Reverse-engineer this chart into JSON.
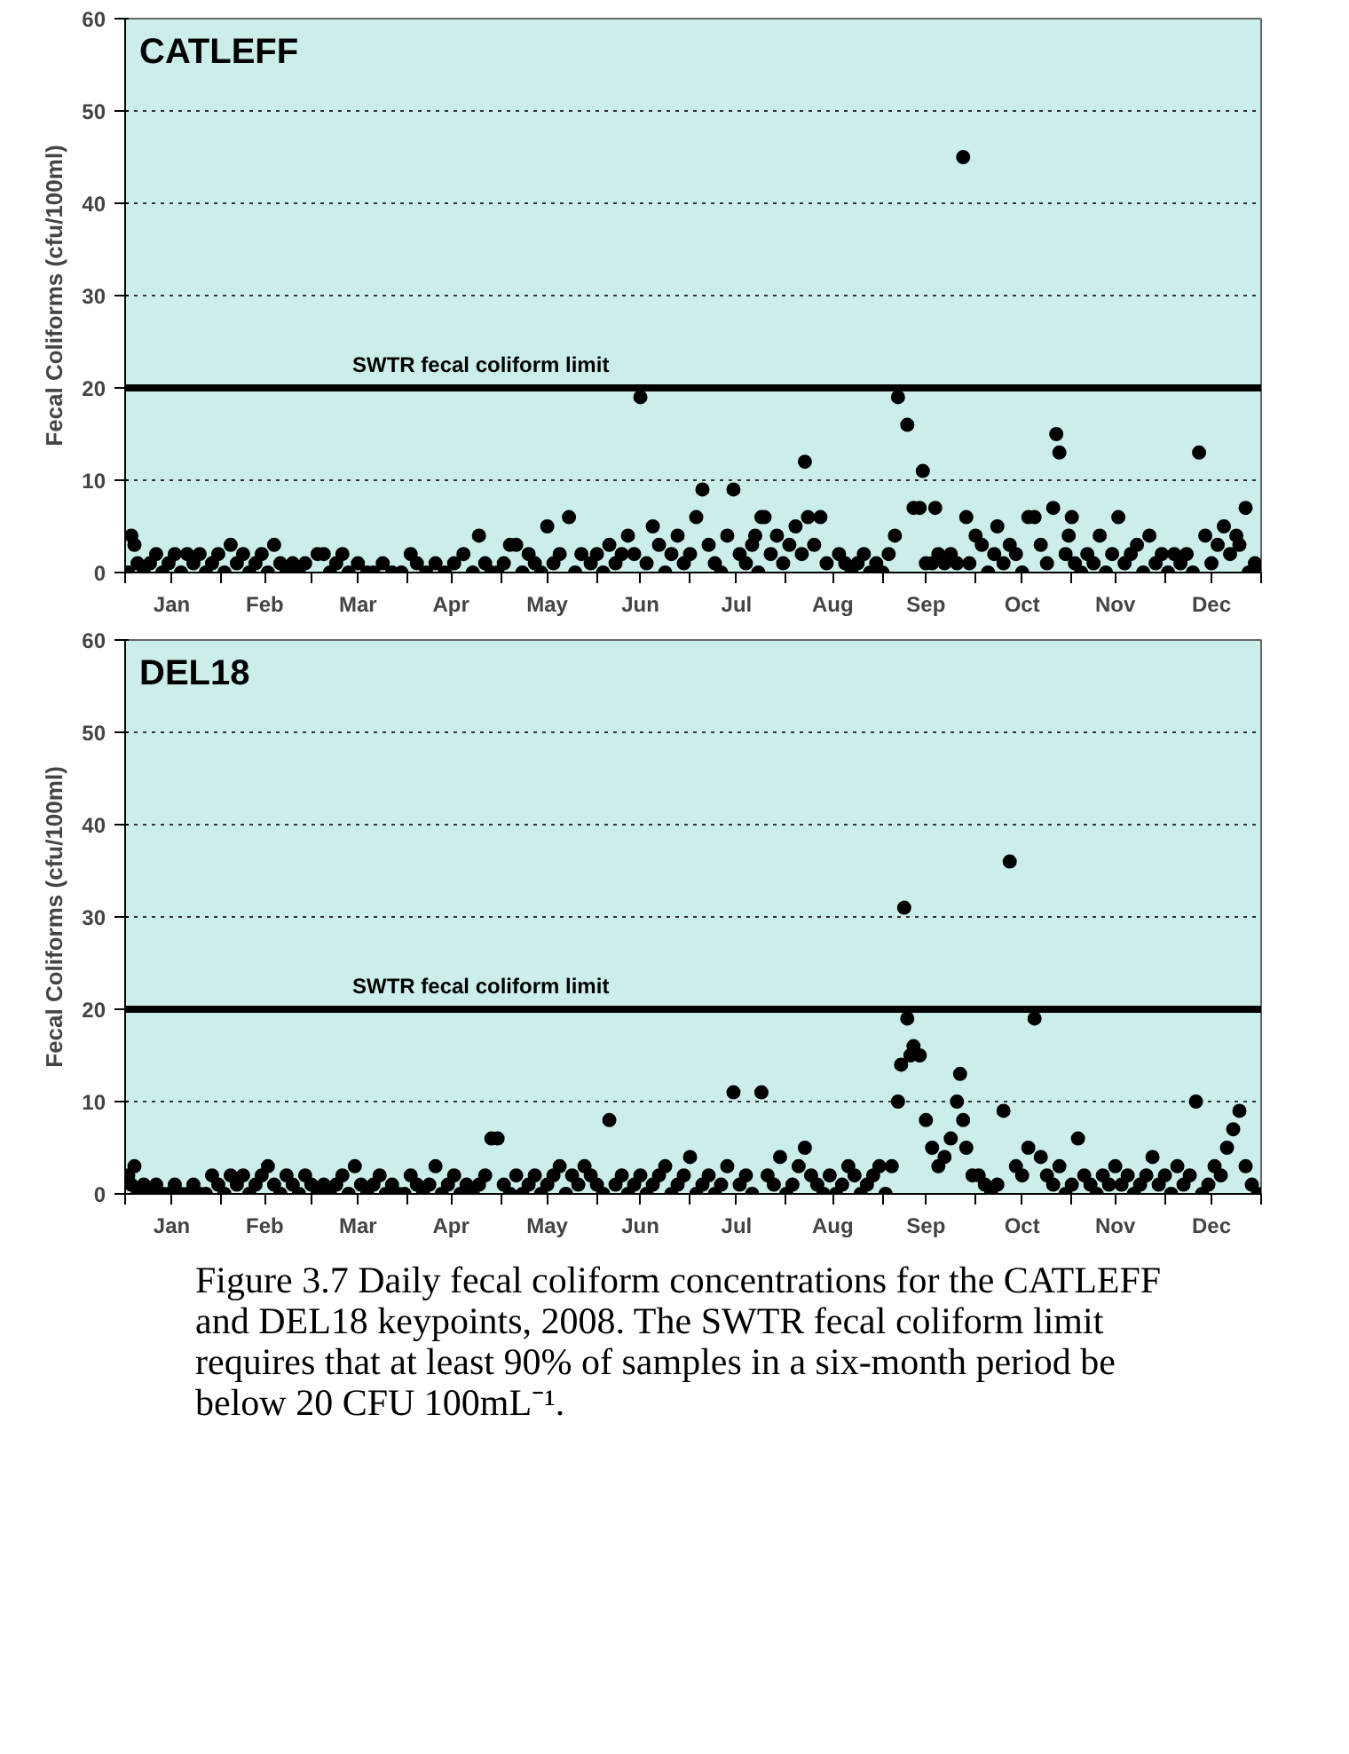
{
  "chart_data": [
    {
      "type": "scatter",
      "title": "CATLEFF",
      "ylabel": "Fecal Coliforms (cfu/100ml)",
      "marker": "circle",
      "grid": "y",
      "xlim": [
        "2008-01-01",
        "2009-01-01"
      ],
      "ylim": [
        0,
        60
      ],
      "yticks": [
        0,
        10,
        20,
        30,
        40,
        50,
        60
      ],
      "xticks": [
        {
          "value": "2008-01-01",
          "label": null
        },
        {
          "value": "2008-01-16",
          "label": "Jan"
        },
        {
          "value": "2008-02-01",
          "label": null
        },
        {
          "value": "2008-02-15",
          "label": "Feb"
        },
        {
          "value": "2008-03-01",
          "label": null
        },
        {
          "value": "2008-03-16",
          "label": "Mar"
        },
        {
          "value": "2008-04-01",
          "label": null
        },
        {
          "value": "2008-04-15",
          "label": "Apr"
        },
        {
          "value": "2008-05-01",
          "label": null
        },
        {
          "value": "2008-05-16",
          "label": "May"
        },
        {
          "value": "2008-06-01",
          "label": null
        },
        {
          "value": "2008-06-15",
          "label": "Jun"
        },
        {
          "value": "2008-07-01",
          "label": null
        },
        {
          "value": "2008-07-16",
          "label": "Jul"
        },
        {
          "value": "2008-08-01",
          "label": null
        },
        {
          "value": "2008-08-16",
          "label": "Aug"
        },
        {
          "value": "2008-09-01",
          "label": null
        },
        {
          "value": "2008-09-15",
          "label": "Sep"
        },
        {
          "value": "2008-10-01",
          "label": null
        },
        {
          "value": "2008-10-16",
          "label": "Oct"
        },
        {
          "value": "2008-11-01",
          "label": null
        },
        {
          "value": "2008-11-15",
          "label": "Nov"
        },
        {
          "value": "2008-12-01",
          "label": null
        },
        {
          "value": "2008-12-16",
          "label": "Dec"
        },
        {
          "value": "2009-01-01",
          "label": null
        }
      ],
      "ref_lines": [
        {
          "axis": "y",
          "value": 20,
          "label": "SWTR fecal coliform limit",
          "color": "#000000"
        }
      ],
      "series": [
        {
          "color": "#000000",
          "x": [
            "2008-01-02",
            "2008-01-03",
            "2008-01-04",
            "2008-01-05",
            "2008-01-07",
            "2008-01-09",
            "2008-01-11",
            "2008-01-13",
            "2008-01-15",
            "2008-01-17",
            "2008-01-19",
            "2008-01-21",
            "2008-01-23",
            "2008-01-25",
            "2008-01-27",
            "2008-01-29",
            "2008-01-31",
            "2008-02-02",
            "2008-02-04",
            "2008-02-06",
            "2008-02-08",
            "2008-02-10",
            "2008-02-12",
            "2008-02-14",
            "2008-02-16",
            "2008-02-18",
            "2008-02-20",
            "2008-02-22",
            "2008-02-24",
            "2008-02-26",
            "2008-02-28",
            "2008-03-03",
            "2008-03-05",
            "2008-03-07",
            "2008-03-09",
            "2008-03-11",
            "2008-03-13",
            "2008-03-16",
            "2008-03-19",
            "2008-03-21",
            "2008-03-24",
            "2008-03-27",
            "2008-03-30",
            "2008-04-02",
            "2008-04-04",
            "2008-04-07",
            "2008-04-10",
            "2008-04-13",
            "2008-04-16",
            "2008-04-19",
            "2008-04-22",
            "2008-04-24",
            "2008-04-26",
            "2008-04-28",
            "2008-04-30",
            "2008-05-02",
            "2008-05-04",
            "2008-05-06",
            "2008-05-08",
            "2008-05-10",
            "2008-05-12",
            "2008-05-14",
            "2008-05-16",
            "2008-05-18",
            "2008-05-20",
            "2008-05-23",
            "2008-05-25",
            "2008-05-27",
            "2008-05-30",
            "2008-06-01",
            "2008-06-03",
            "2008-06-05",
            "2008-06-07",
            "2008-06-09",
            "2008-06-11",
            "2008-06-13",
            "2008-06-15",
            "2008-06-17",
            "2008-06-19",
            "2008-06-21",
            "2008-06-23",
            "2008-06-25",
            "2008-06-27",
            "2008-06-29",
            "2008-07-01",
            "2008-07-03",
            "2008-07-05",
            "2008-07-07",
            "2008-07-09",
            "2008-07-11",
            "2008-07-13",
            "2008-07-15",
            "2008-07-17",
            "2008-07-19",
            "2008-07-21",
            "2008-07-22",
            "2008-07-23",
            "2008-07-24",
            "2008-07-25",
            "2008-07-27",
            "2008-07-29",
            "2008-07-31",
            "2008-08-02",
            "2008-08-04",
            "2008-08-06",
            "2008-08-07",
            "2008-08-08",
            "2008-08-10",
            "2008-08-12",
            "2008-08-14",
            "2008-08-18",
            "2008-08-20",
            "2008-08-22",
            "2008-08-24",
            "2008-08-26",
            "2008-08-28",
            "2008-08-30",
            "2008-09-01",
            "2008-09-03",
            "2008-09-05",
            "2008-09-06",
            "2008-09-09",
            "2008-09-11",
            "2008-09-13",
            "2008-09-14",
            "2008-09-15",
            "2008-09-17",
            "2008-09-18",
            "2008-09-19",
            "2008-09-21",
            "2008-09-23",
            "2008-09-25",
            "2008-09-27",
            "2008-09-28",
            "2008-09-29",
            "2008-10-01",
            "2008-10-03",
            "2008-10-05",
            "2008-10-07",
            "2008-10-08",
            "2008-10-10",
            "2008-10-12",
            "2008-10-14",
            "2008-10-16",
            "2008-10-18",
            "2008-10-20",
            "2008-10-22",
            "2008-10-24",
            "2008-10-26",
            "2008-10-27",
            "2008-10-28",
            "2008-10-30",
            "2008-10-31",
            "2008-11-01",
            "2008-11-02",
            "2008-11-04",
            "2008-11-06",
            "2008-11-08",
            "2008-11-10",
            "2008-11-12",
            "2008-11-14",
            "2008-11-16",
            "2008-11-18",
            "2008-11-20",
            "2008-11-22",
            "2008-11-24",
            "2008-11-26",
            "2008-11-28",
            "2008-11-30",
            "2008-12-02",
            "2008-12-04",
            "2008-12-06",
            "2008-12-08",
            "2008-12-10",
            "2008-12-12",
            "2008-12-14",
            "2008-12-16",
            "2008-12-18",
            "2008-12-20",
            "2008-12-22",
            "2008-12-24",
            "2008-12-25",
            "2008-12-27",
            "2008-12-28",
            "2008-12-30",
            "2008-12-31"
          ],
          "values": [
            0,
            4,
            3,
            1,
            0,
            1,
            2,
            0,
            1,
            2,
            0,
            2,
            1,
            2,
            0,
            1,
            2,
            0,
            3,
            1,
            2,
            0,
            1,
            2,
            0,
            3,
            1,
            0,
            1,
            0,
            1,
            2,
            2,
            0,
            1,
            2,
            0,
            1,
            0,
            0,
            1,
            0,
            0,
            2,
            1,
            0,
            1,
            0,
            1,
            2,
            0,
            4,
            1,
            0,
            0,
            1,
            3,
            3,
            0,
            2,
            1,
            0,
            5,
            1,
            2,
            6,
            0,
            2,
            1,
            2,
            0,
            3,
            1,
            2,
            4,
            2,
            19,
            1,
            5,
            3,
            0,
            2,
            4,
            1,
            2,
            6,
            9,
            3,
            1,
            0,
            4,
            9,
            2,
            1,
            3,
            4,
            0,
            6,
            6,
            2,
            4,
            1,
            3,
            5,
            2,
            12,
            6,
            3,
            6,
            1,
            2,
            1,
            0,
            1,
            2,
            0,
            1,
            0,
            2,
            4,
            19,
            16,
            7,
            7,
            11,
            1,
            1,
            7,
            2,
            1,
            2,
            1,
            45,
            6,
            1,
            4,
            3,
            0,
            2,
            5,
            1,
            3,
            2,
            0,
            6,
            6,
            3,
            1,
            7,
            15,
            13,
            2,
            4,
            6,
            1,
            0,
            2,
            1,
            4,
            0,
            2,
            6,
            1,
            2,
            3,
            0,
            4,
            1,
            2,
            0,
            2,
            1,
            2,
            0,
            13,
            4,
            1,
            3,
            5,
            2,
            4,
            3,
            7,
            0,
            1,
            0
          ]
        }
      ]
    },
    {
      "type": "scatter",
      "title": "DEL18",
      "ylabel": "Fecal Coliforms (cfu/100ml)",
      "marker": "circle",
      "grid": "y",
      "xlim": [
        "2008-01-01",
        "2009-01-01"
      ],
      "ylim": [
        0,
        60
      ],
      "yticks": [
        0,
        10,
        20,
        30,
        40,
        50,
        60
      ],
      "xticks": [
        {
          "value": "2008-01-01",
          "label": null
        },
        {
          "value": "2008-01-16",
          "label": "Jan"
        },
        {
          "value": "2008-02-01",
          "label": null
        },
        {
          "value": "2008-02-15",
          "label": "Feb"
        },
        {
          "value": "2008-03-01",
          "label": null
        },
        {
          "value": "2008-03-16",
          "label": "Mar"
        },
        {
          "value": "2008-04-01",
          "label": null
        },
        {
          "value": "2008-04-15",
          "label": "Apr"
        },
        {
          "value": "2008-05-01",
          "label": null
        },
        {
          "value": "2008-05-16",
          "label": "May"
        },
        {
          "value": "2008-06-01",
          "label": null
        },
        {
          "value": "2008-06-15",
          "label": "Jun"
        },
        {
          "value": "2008-07-01",
          "label": null
        },
        {
          "value": "2008-07-16",
          "label": "Jul"
        },
        {
          "value": "2008-08-01",
          "label": null
        },
        {
          "value": "2008-08-16",
          "label": "Aug"
        },
        {
          "value": "2008-09-01",
          "label": null
        },
        {
          "value": "2008-09-15",
          "label": "Sep"
        },
        {
          "value": "2008-10-01",
          "label": null
        },
        {
          "value": "2008-10-16",
          "label": "Oct"
        },
        {
          "value": "2008-11-01",
          "label": null
        },
        {
          "value": "2008-11-15",
          "label": "Nov"
        },
        {
          "value": "2008-12-01",
          "label": null
        },
        {
          "value": "2008-12-16",
          "label": "Dec"
        },
        {
          "value": "2009-01-01",
          "label": null
        }
      ],
      "ref_lines": [
        {
          "axis": "y",
          "value": 20,
          "label": "SWTR fecal coliform limit",
          "color": "#000000"
        }
      ],
      "annotations": [
        "Figure 3.7  Daily fecal coliform concentrations for the CATLEFF and DEL18 keypoints, 2008. The SWTR fecal coliform limit requires that at least 90% of samples in a six-month period be below 20 CFU 100mL⁻¹."
      ],
      "series": [
        {
          "color": "#000000",
          "x": [
            "2008-01-02",
            "2008-01-03",
            "2008-01-04",
            "2008-01-05",
            "2008-01-07",
            "2008-01-09",
            "2008-01-11",
            "2008-01-13",
            "2008-01-15",
            "2008-01-17",
            "2008-01-19",
            "2008-01-21",
            "2008-01-23",
            "2008-01-25",
            "2008-01-27",
            "2008-01-29",
            "2008-01-31",
            "2008-02-02",
            "2008-02-04",
            "2008-02-06",
            "2008-02-08",
            "2008-02-10",
            "2008-02-12",
            "2008-02-14",
            "2008-02-16",
            "2008-02-18",
            "2008-02-20",
            "2008-02-22",
            "2008-02-24",
            "2008-02-26",
            "2008-02-28",
            "2008-03-01",
            "2008-03-03",
            "2008-03-05",
            "2008-03-07",
            "2008-03-09",
            "2008-03-11",
            "2008-03-13",
            "2008-03-15",
            "2008-03-17",
            "2008-03-19",
            "2008-03-21",
            "2008-03-23",
            "2008-03-25",
            "2008-03-27",
            "2008-03-29",
            "2008-03-31",
            "2008-04-02",
            "2008-04-04",
            "2008-04-06",
            "2008-04-08",
            "2008-04-10",
            "2008-04-12",
            "2008-04-14",
            "2008-04-16",
            "2008-04-18",
            "2008-04-20",
            "2008-04-22",
            "2008-04-24",
            "2008-04-26",
            "2008-04-28",
            "2008-04-30",
            "2008-05-02",
            "2008-05-04",
            "2008-05-06",
            "2008-05-08",
            "2008-05-10",
            "2008-05-12",
            "2008-05-14",
            "2008-05-16",
            "2008-05-18",
            "2008-05-20",
            "2008-05-22",
            "2008-05-24",
            "2008-05-26",
            "2008-05-28",
            "2008-05-30",
            "2008-06-01",
            "2008-06-03",
            "2008-06-05",
            "2008-06-07",
            "2008-06-09",
            "2008-06-11",
            "2008-06-13",
            "2008-06-15",
            "2008-06-17",
            "2008-06-19",
            "2008-06-21",
            "2008-06-23",
            "2008-06-25",
            "2008-06-27",
            "2008-06-29",
            "2008-07-01",
            "2008-07-03",
            "2008-07-05",
            "2008-07-07",
            "2008-07-09",
            "2008-07-11",
            "2008-07-13",
            "2008-07-15",
            "2008-07-17",
            "2008-07-19",
            "2008-07-21",
            "2008-07-24",
            "2008-07-26",
            "2008-07-28",
            "2008-07-30",
            "2008-08-01",
            "2008-08-03",
            "2008-08-05",
            "2008-08-07",
            "2008-08-09",
            "2008-08-11",
            "2008-08-13",
            "2008-08-15",
            "2008-08-17",
            "2008-08-19",
            "2008-08-21",
            "2008-08-23",
            "2008-08-25",
            "2008-08-27",
            "2008-08-29",
            "2008-08-31",
            "2008-09-02",
            "2008-09-04",
            "2008-09-06",
            "2008-09-07",
            "2008-09-08",
            "2008-09-09",
            "2008-09-10",
            "2008-09-11",
            "2008-09-13",
            "2008-09-15",
            "2008-09-17",
            "2008-09-19",
            "2008-09-21",
            "2008-09-23",
            "2008-09-25",
            "2008-09-26",
            "2008-09-27",
            "2008-09-28",
            "2008-09-30",
            "2008-10-02",
            "2008-10-04",
            "2008-10-06",
            "2008-10-08",
            "2008-10-10",
            "2008-10-12",
            "2008-10-14",
            "2008-10-16",
            "2008-10-18",
            "2008-10-20",
            "2008-10-22",
            "2008-10-24",
            "2008-10-26",
            "2008-10-28",
            "2008-10-30",
            "2008-11-01",
            "2008-11-03",
            "2008-11-05",
            "2008-11-07",
            "2008-11-09",
            "2008-11-11",
            "2008-11-13",
            "2008-11-15",
            "2008-11-17",
            "2008-11-19",
            "2008-11-21",
            "2008-11-23",
            "2008-11-25",
            "2008-11-27",
            "2008-11-29",
            "2008-12-01",
            "2008-12-03",
            "2008-12-05",
            "2008-12-07",
            "2008-12-09",
            "2008-12-11",
            "2008-12-13",
            "2008-12-15",
            "2008-12-17",
            "2008-12-19",
            "2008-12-21",
            "2008-12-23",
            "2008-12-25",
            "2008-12-27",
            "2008-12-29",
            "2008-12-31"
          ],
          "values": [
            2,
            1,
            3,
            0,
            1,
            0,
            1,
            0,
            0,
            1,
            0,
            0,
            1,
            0,
            0,
            2,
            1,
            0,
            2,
            1,
            2,
            0,
            1,
            2,
            3,
            1,
            0,
            2,
            1,
            0,
            2,
            1,
            0,
            1,
            0,
            1,
            2,
            0,
            3,
            1,
            0,
            1,
            2,
            0,
            1,
            0,
            0,
            2,
            1,
            0,
            1,
            3,
            0,
            1,
            2,
            0,
            1,
            0,
            1,
            2,
            6,
            6,
            1,
            0,
            2,
            0,
            1,
            2,
            0,
            1,
            2,
            3,
            0,
            2,
            1,
            3,
            2,
            1,
            0,
            8,
            1,
            2,
            0,
            1,
            2,
            0,
            1,
            2,
            3,
            0,
            1,
            2,
            4,
            0,
            1,
            2,
            0,
            1,
            3,
            11,
            1,
            2,
            0,
            11,
            2,
            1,
            4,
            0,
            1,
            3,
            5,
            2,
            1,
            0,
            2,
            0,
            1,
            3,
            2,
            0,
            1,
            2,
            3,
            0,
            3,
            10,
            14,
            31,
            19,
            15,
            16,
            15,
            8,
            5,
            3,
            4,
            6,
            10,
            13,
            8,
            5,
            2,
            2,
            1,
            0,
            1,
            9,
            36,
            3,
            2,
            5,
            19,
            4,
            2,
            1,
            3,
            0,
            1,
            6,
            2,
            1,
            0,
            2,
            1,
            3,
            1,
            2,
            0,
            1,
            2,
            4,
            1,
            2,
            0,
            3,
            1,
            2,
            10,
            0,
            1,
            3,
            2,
            5,
            7,
            9,
            3,
            1,
            0
          ]
        }
      ]
    }
  ]
}
